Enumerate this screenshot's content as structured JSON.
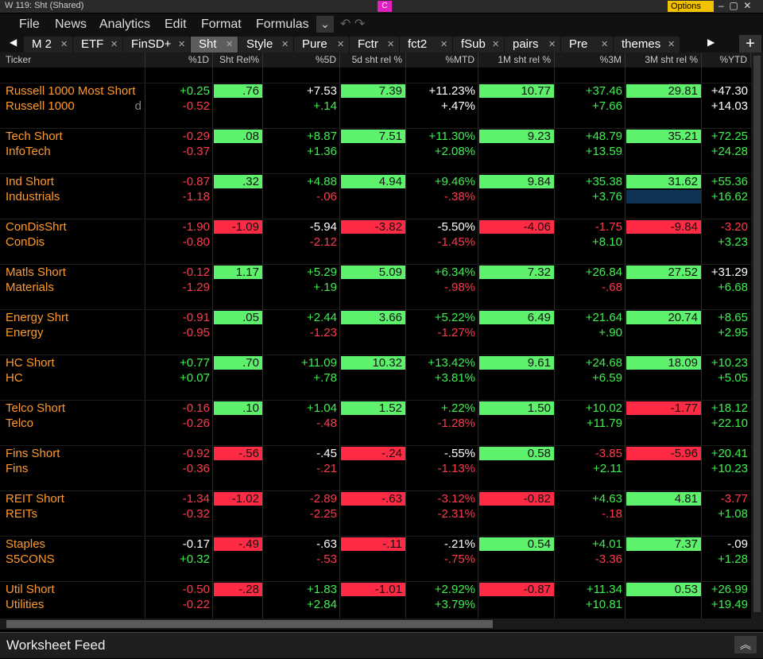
{
  "window_title": "W 119: Sht (Shared)",
  "badge": "C",
  "options": "Options",
  "menu": [
    "File",
    "News",
    "Analytics",
    "Edit",
    "Format",
    "Formulas"
  ],
  "tabs": [
    "M 2",
    "ETF",
    "FinSD+",
    "Sht",
    "Style",
    "Pure",
    "Fctr",
    "fct2",
    "fSub",
    "pairs",
    "Pre",
    "themes"
  ],
  "active_tab": 3,
  "table": {
    "columns": [
      "Ticker",
      "%1D",
      "Sht Rel%",
      "%5D",
      "5d sht rel %",
      "%MTD",
      "1M sht rel %",
      "%3M",
      "3M sht rel %",
      "%YTD"
    ],
    "rows": [
      {
        "ticker": "Russell 1000 Most Short",
        "cells": [
          "+0.25",
          ".76",
          "+7.53",
          "7.39",
          "+11.23%",
          "10.77",
          "+37.46",
          "29.81",
          "+47.30"
        ],
        "colors": [
          "#3df04f",
          "#5ef16c",
          "#ffffff",
          "#5ef16c",
          "#ffffff",
          "#5ef16c",
          "#3df04f",
          "#5ef16c",
          "#ffffff"
        ]
      },
      {
        "ticker": "Russell 1000",
        "marker": "d",
        "cells": [
          "-0.52",
          null,
          "+.14",
          null,
          "+.47%",
          null,
          "+7.66",
          null,
          "+14.03"
        ],
        "colors": [
          "#ff3a4c",
          null,
          "#3df04f",
          null,
          "#ffffff",
          null,
          "#3df04f",
          null,
          "#ffffff"
        ]
      },
      {
        "ticker": "Tech Short",
        "cells": [
          "-0.29",
          ".08",
          "+8.87",
          "7.51",
          "+11.30%",
          "9.23",
          "+48.79",
          "35.21",
          "+72.25"
        ],
        "colors": [
          "#ff3a4c",
          "#5ef16c",
          "#3df04f",
          "#5ef16c",
          "#3df04f",
          "#5ef16c",
          "#3df04f",
          "#5ef16c",
          "#3df04f"
        ]
      },
      {
        "ticker": "InfoTech",
        "cells": [
          "-0.37",
          null,
          "+1.36",
          null,
          "+2.08%",
          null,
          "+13.59",
          null,
          "+24.28"
        ],
        "colors": [
          "#ff3a4c",
          null,
          "#3df04f",
          null,
          "#3df04f",
          null,
          "#3df04f",
          null,
          "#3df04f"
        ]
      },
      {
        "ticker": "Ind Short",
        "cells": [
          "-0.87",
          ".32",
          "+4.88",
          "4.94",
          "+9.46%",
          "9.84",
          "+35.38",
          "31.62",
          "+55.36"
        ],
        "colors": [
          "#ff3a4c",
          "#5ef16c",
          "#3df04f",
          "#5ef16c",
          "#3df04f",
          "#5ef16c",
          "#3df04f",
          "#5ef16c",
          "#3df04f"
        ]
      },
      {
        "ticker": "Industrials",
        "cells": [
          "-1.18",
          null,
          "-.06",
          null,
          "-.38%",
          null,
          "+3.76",
          null,
          "+16.62"
        ],
        "colors": [
          "#ff3a4c",
          null,
          "#ff3a4c",
          null,
          "#ff3a4c",
          null,
          "#3df04f",
          "#0f3356",
          "#3df04f"
        ]
      },
      {
        "ticker": "ConDisShrt",
        "cells": [
          "-1.90",
          "-1.09",
          "-5.94",
          "-3.82",
          "-5.50%",
          "-4.06",
          "-1.75",
          "-9.84",
          "-3.20"
        ],
        "colors": [
          "#ff3a4c",
          "#ff2a44",
          "#ffffff",
          "#ff2a44",
          "#ffffff",
          "#ff2a44",
          "#ff3a4c",
          "#ff2a44",
          "#ff3a4c"
        ]
      },
      {
        "ticker": "ConDis",
        "cells": [
          "-0.80",
          null,
          "-2.12",
          null,
          "-1.45%",
          null,
          "+8.10",
          null,
          "+3.23"
        ],
        "colors": [
          "#ff3a4c",
          null,
          "#ff3a4c",
          null,
          "#ff3a4c",
          null,
          "#3df04f",
          null,
          "#3df04f"
        ]
      },
      {
        "ticker": "Matls Short",
        "cells": [
          "-0.12",
          "1.17",
          "+5.29",
          "5.09",
          "+6.34%",
          "7.32",
          "+26.84",
          "27.52",
          "+31.29"
        ],
        "colors": [
          "#ff3a4c",
          "#5ef16c",
          "#3df04f",
          "#5ef16c",
          "#3df04f",
          "#5ef16c",
          "#3df04f",
          "#5ef16c",
          "#ffffff"
        ]
      },
      {
        "ticker": "Materials",
        "cells": [
          "-1.29",
          null,
          "+.19",
          null,
          "-.98%",
          null,
          "-.68",
          null,
          "+6.68"
        ],
        "colors": [
          "#ff3a4c",
          null,
          "#3df04f",
          null,
          "#ff3a4c",
          null,
          "#ff3a4c",
          null,
          "#3df04f"
        ]
      },
      {
        "ticker": "Energy Shrt",
        "cells": [
          "-0.91",
          ".05",
          "+2.44",
          "3.66",
          "+5.22%",
          "6.49",
          "+21.64",
          "20.74",
          "+8.65"
        ],
        "colors": [
          "#ff3a4c",
          "#5ef16c",
          "#3df04f",
          "#5ef16c",
          "#3df04f",
          "#5ef16c",
          "#3df04f",
          "#5ef16c",
          "#3df04f"
        ]
      },
      {
        "ticker": "Energy",
        "cells": [
          "-0.95",
          null,
          "-1.23",
          null,
          "-1.27%",
          null,
          "+.90",
          null,
          "+2.95"
        ],
        "colors": [
          "#ff3a4c",
          null,
          "#ff3a4c",
          null,
          "#ff3a4c",
          null,
          "#3df04f",
          null,
          "#3df04f"
        ]
      },
      {
        "ticker": "HC Short",
        "cells": [
          "+0.77",
          ".70",
          "+11.09",
          "10.32",
          "+13.42%",
          "9.61",
          "+24.68",
          "18.09",
          "+10.23"
        ],
        "colors": [
          "#3df04f",
          "#5ef16c",
          "#3df04f",
          "#5ef16c",
          "#3df04f",
          "#5ef16c",
          "#3df04f",
          "#5ef16c",
          "#3df04f"
        ]
      },
      {
        "ticker": "HC",
        "cells": [
          "+0.07",
          null,
          "+.78",
          null,
          "+3.81%",
          null,
          "+6.59",
          null,
          "+5.05"
        ],
        "colors": [
          "#3df04f",
          null,
          "#3df04f",
          null,
          "#3df04f",
          null,
          "#3df04f",
          null,
          "#3df04f"
        ]
      },
      {
        "ticker": "Telco Short",
        "cells": [
          "-0.16",
          ".10",
          "+1.04",
          "1.52",
          "+.22%",
          "1.50",
          "+10.02",
          "-1.77",
          "+18.12"
        ],
        "colors": [
          "#ff3a4c",
          "#5ef16c",
          "#3df04f",
          "#5ef16c",
          "#3df04f",
          "#5ef16c",
          "#3df04f",
          "#ff2a44",
          "#3df04f"
        ]
      },
      {
        "ticker": "Telco",
        "cells": [
          "-0.26",
          null,
          "-.48",
          null,
          "-1.28%",
          null,
          "+11.79",
          null,
          "+22.10"
        ],
        "colors": [
          "#ff3a4c",
          null,
          "#ff3a4c",
          null,
          "#ff3a4c",
          null,
          "#3df04f",
          null,
          "#3df04f"
        ]
      },
      {
        "ticker": "Fins Short",
        "cells": [
          "-0.92",
          "-.56",
          "-.45",
          "-.24",
          "-.55%",
          "0.58",
          "-3.85",
          "-5.96",
          "+20.41"
        ],
        "colors": [
          "#ff3a4c",
          "#ff2a44",
          "#ffffff",
          "#ff2a44",
          "#ffffff",
          "#5ef16c",
          "#ff3a4c",
          "#ff2a44",
          "#3df04f"
        ]
      },
      {
        "ticker": "Fins",
        "cells": [
          "-0.36",
          null,
          "-.21",
          null,
          "-1.13%",
          null,
          "+2.11",
          null,
          "+10.23"
        ],
        "colors": [
          "#ff3a4c",
          null,
          "#ff3a4c",
          null,
          "#ff3a4c",
          null,
          "#3df04f",
          null,
          "#3df04f"
        ]
      },
      {
        "ticker": "REIT Short",
        "cells": [
          "-1.34",
          "-1.02",
          "-2.89",
          "-.63",
          "-3.12%",
          "-0.82",
          "+4.63",
          "4.81",
          "-3.77"
        ],
        "colors": [
          "#ff3a4c",
          "#ff2a44",
          "#ff3a4c",
          "#ff2a44",
          "#ff3a4c",
          "#ff2a44",
          "#3df04f",
          "#5ef16c",
          "#ff3a4c"
        ]
      },
      {
        "ticker": "REITs",
        "cells": [
          "-0.32",
          null,
          "-2.25",
          null,
          "-2.31%",
          null,
          "-.18",
          null,
          "+1.08"
        ],
        "colors": [
          "#ff3a4c",
          null,
          "#ff3a4c",
          null,
          "#ff3a4c",
          null,
          "#ff3a4c",
          null,
          "#3df04f"
        ]
      },
      {
        "ticker": "Staples",
        "cells": [
          "-0.17",
          "-.49",
          "-.63",
          "-.11",
          "-.21%",
          "0.54",
          "+4.01",
          "7.37",
          "-.09"
        ],
        "colors": [
          "#ffffff",
          "#ff2a44",
          "#ffffff",
          "#ff2a44",
          "#ffffff",
          "#5ef16c",
          "#3df04f",
          "#5ef16c",
          "#ffffff"
        ]
      },
      {
        "ticker": "S5CONS",
        "cells": [
          "+0.32",
          null,
          "-.53",
          null,
          "-.75%",
          null,
          "-3.36",
          null,
          "+1.28"
        ],
        "colors": [
          "#3df04f",
          null,
          "#ff3a4c",
          null,
          "#ff3a4c",
          null,
          "#ff3a4c",
          null,
          "#3df04f"
        ]
      },
      {
        "ticker": "Util Short",
        "cells": [
          "-0.50",
          "-.28",
          "+1.83",
          "-1.01",
          "+2.92%",
          "-0.87",
          "+11.34",
          "0.53",
          "+26.99"
        ],
        "colors": [
          "#ff3a4c",
          "#ff2a44",
          "#3df04f",
          "#ff2a44",
          "#3df04f",
          "#ff2a44",
          "#3df04f",
          "#5ef16c",
          "#3df04f"
        ]
      },
      {
        "ticker": "Utilities",
        "cells": [
          "-0.22",
          null,
          "+2.84",
          null,
          "+3.79%",
          null,
          "+10.81",
          null,
          "+19.49"
        ],
        "colors": [
          "#ff3a4c",
          null,
          "#3df04f",
          null,
          "#3df04f",
          null,
          "#3df04f",
          null,
          "#3df04f"
        ]
      }
    ]
  },
  "footer": "Worksheet Feed"
}
